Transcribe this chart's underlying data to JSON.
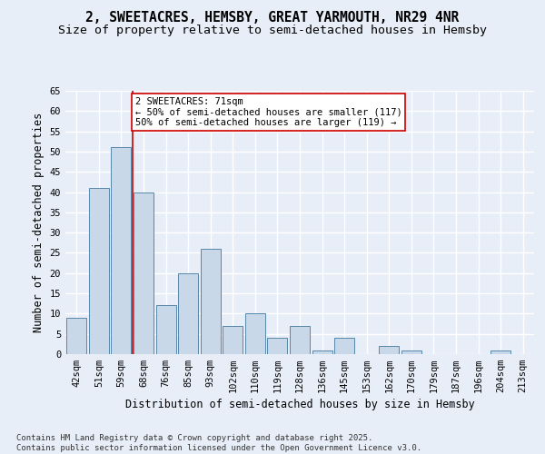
{
  "title": "2, SWEETACRES, HEMSBY, GREAT YARMOUTH, NR29 4NR",
  "subtitle": "Size of property relative to semi-detached houses in Hemsby",
  "xlabel": "Distribution of semi-detached houses by size in Hemsby",
  "ylabel": "Number of semi-detached properties",
  "categories": [
    "42sqm",
    "51sqm",
    "59sqm",
    "68sqm",
    "76sqm",
    "85sqm",
    "93sqm",
    "102sqm",
    "110sqm",
    "119sqm",
    "128sqm",
    "136sqm",
    "145sqm",
    "153sqm",
    "162sqm",
    "170sqm",
    "179sqm",
    "187sqm",
    "196sqm",
    "204sqm",
    "213sqm"
  ],
  "values": [
    9,
    41,
    51,
    40,
    12,
    20,
    26,
    7,
    10,
    4,
    7,
    1,
    4,
    0,
    2,
    1,
    0,
    0,
    0,
    1,
    0
  ],
  "bar_color": "#c8d8e8",
  "bar_edge_color": "#5588aa",
  "background_color": "#e8eef8",
  "grid_color": "#ffffff",
  "annotation_line1": "2 SWEETACRES: 71sqm",
  "annotation_line2": "← 50% of semi-detached houses are smaller (117)",
  "annotation_line3": "50% of semi-detached houses are larger (119) →",
  "vline_color": "#cc0000",
  "annotation_box_edge": "#cc0000",
  "ylim": [
    0,
    65
  ],
  "yticks": [
    0,
    5,
    10,
    15,
    20,
    25,
    30,
    35,
    40,
    45,
    50,
    55,
    60,
    65
  ],
  "footer_line1": "Contains HM Land Registry data © Crown copyright and database right 2025.",
  "footer_line2": "Contains public sector information licensed under the Open Government Licence v3.0.",
  "title_fontsize": 10.5,
  "subtitle_fontsize": 9.5,
  "axis_label_fontsize": 8.5,
  "tick_fontsize": 7.5,
  "annotation_fontsize": 7.5,
  "footer_fontsize": 6.5
}
